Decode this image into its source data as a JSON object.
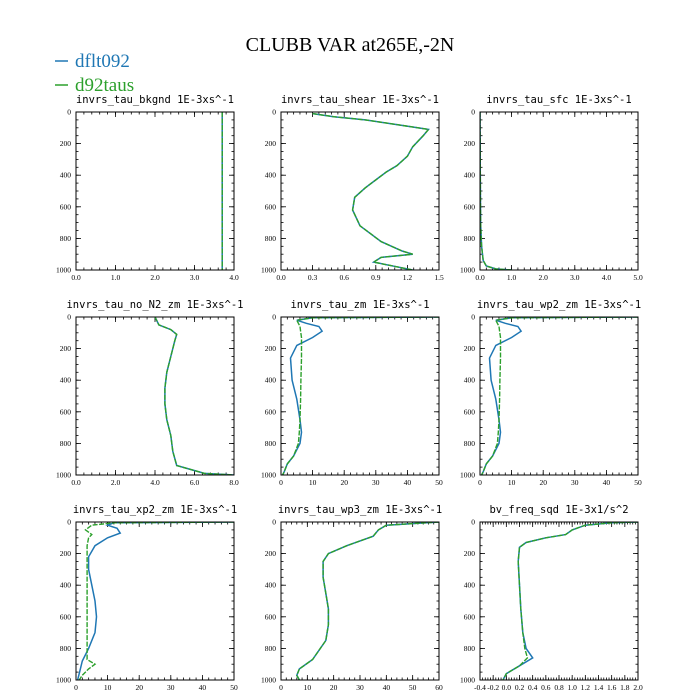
{
  "figure": {
    "title": "CLUBB VAR at265E,-2N",
    "legend": [
      {
        "label": "dflt092",
        "color": "#1f77b4"
      },
      {
        "label": "d92taus",
        "color": "#2ca02c"
      }
    ]
  },
  "chart_data": [
    {
      "type": "line",
      "title": "invrs_tau_bkgnd   1E-3xs^-1",
      "xlim": [
        0,
        4.0
      ],
      "ylim": [
        0,
        1000
      ],
      "y_inverted": true,
      "xticklabels": [
        "0.0",
        "1.0",
        "2.0",
        "3.0",
        "4.0"
      ],
      "yticklabels": [
        "0",
        "200",
        "400",
        "600",
        "800",
        "1000"
      ],
      "series": [
        {
          "name": "dflt092",
          "x": [
            3.7,
            3.7
          ],
          "y": [
            0,
            1000
          ]
        },
        {
          "name": "d92taus",
          "x": [
            3.7,
            3.7
          ],
          "y": [
            0,
            1000
          ]
        }
      ]
    },
    {
      "type": "line",
      "title": "invrs_tau_shear   1E-3xs^-1",
      "xlim": [
        0,
        1.5
      ],
      "ylim": [
        0,
        1000
      ],
      "y_inverted": true,
      "xticklabels": [
        "0.0",
        "0.3",
        "0.6",
        "0.9",
        "1.2",
        "1.5"
      ],
      "yticklabels": [
        "0",
        "200",
        "400",
        "600",
        "800",
        "1000"
      ],
      "series": [
        {
          "name": "dflt092",
          "x": [
            0.3,
            0.5,
            0.8,
            1.1,
            1.4,
            1.35,
            1.25,
            1.2,
            1.1,
            1.0,
            0.9,
            0.8,
            0.7,
            0.68,
            0.75,
            0.95,
            1.15,
            1.25,
            0.95,
            0.88,
            1.1,
            1.25
          ],
          "y": [
            10,
            30,
            50,
            80,
            110,
            150,
            220,
            280,
            340,
            380,
            430,
            480,
            540,
            620,
            720,
            820,
            880,
            900,
            920,
            950,
            980,
            1000
          ]
        },
        {
          "name": "d92taus",
          "x": [
            0.3,
            0.5,
            0.8,
            1.1,
            1.4,
            1.35,
            1.25,
            1.2,
            1.1,
            1.0,
            0.9,
            0.8,
            0.7,
            0.68,
            0.75,
            0.95,
            1.15,
            1.25,
            0.95,
            0.88,
            1.1,
            1.25
          ],
          "y": [
            10,
            30,
            50,
            80,
            110,
            150,
            220,
            280,
            340,
            380,
            430,
            480,
            540,
            620,
            720,
            820,
            880,
            900,
            920,
            950,
            980,
            1000
          ]
        }
      ]
    },
    {
      "type": "line",
      "title": "invrs_tau_sfc   1E-3xs^-1",
      "xlim": [
        0,
        5.0
      ],
      "ylim": [
        0,
        1000
      ],
      "y_inverted": true,
      "xticklabels": [
        "0.0",
        "1.0",
        "2.0",
        "3.0",
        "4.0",
        "5.0"
      ],
      "yticklabels": [
        "0",
        "200",
        "400",
        "600",
        "800",
        "1000"
      ],
      "series": [
        {
          "name": "dflt092",
          "x": [
            0.0,
            0.01,
            0.02,
            0.05,
            0.1,
            0.2,
            0.5,
            1.0
          ],
          "y": [
            0,
            400,
            700,
            850,
            940,
            975,
            993,
            1000
          ]
        },
        {
          "name": "d92taus",
          "x": [
            0.0,
            0.01,
            0.02,
            0.05,
            0.1,
            0.2,
            0.5,
            1.0
          ],
          "y": [
            0,
            400,
            700,
            850,
            940,
            975,
            993,
            1000
          ]
        }
      ]
    },
    {
      "type": "line",
      "title": "invrs_tau_no_N2_zm   1E-3xs^-1",
      "xlim": [
        0,
        8.0
      ],
      "ylim": [
        0,
        1000
      ],
      "y_inverted": true,
      "xticklabels": [
        "0.0",
        "2.0",
        "4.0",
        "6.0",
        "8.0"
      ],
      "yticklabels": [
        "0",
        "200",
        "400",
        "600",
        "800",
        "1000"
      ],
      "series": [
        {
          "name": "dflt092",
          "x": [
            4.0,
            4.2,
            4.8,
            5.1,
            5.0,
            4.8,
            4.6,
            4.5,
            4.5,
            4.6,
            4.8,
            4.9,
            5.1,
            6.5,
            8.0
          ],
          "y": [
            0,
            50,
            80,
            110,
            150,
            250,
            350,
            450,
            550,
            650,
            750,
            850,
            940,
            990,
            1000
          ]
        },
        {
          "name": "d92taus",
          "x": [
            4.0,
            4.2,
            4.8,
            5.1,
            5.0,
            4.8,
            4.6,
            4.5,
            4.5,
            4.6,
            4.8,
            4.9,
            5.1,
            6.5,
            8.0
          ],
          "y": [
            0,
            50,
            80,
            110,
            150,
            250,
            350,
            450,
            550,
            650,
            750,
            850,
            940,
            990,
            1000
          ]
        }
      ]
    },
    {
      "type": "line",
      "title": "invrs_tau_zm   1E-3xs^-1",
      "xlim": [
        0,
        50
      ],
      "ylim": [
        0,
        1000
      ],
      "y_inverted": true,
      "xticklabels": [
        "0",
        "10",
        "20",
        "30",
        "40",
        "50"
      ],
      "yticklabels": [
        "0",
        "200",
        "400",
        "600",
        "800",
        "1000"
      ],
      "series": [
        {
          "name": "dflt092",
          "x": [
            50,
            10,
            5,
            8,
            12,
            13,
            10,
            5,
            3,
            3.5,
            5,
            6,
            6.5,
            6,
            4,
            2,
            1,
            0.5
          ],
          "y": [
            0,
            5,
            20,
            40,
            60,
            90,
            130,
            180,
            260,
            400,
            520,
            650,
            730,
            800,
            880,
            930,
            980,
            1000
          ]
        },
        {
          "name": "d92taus",
          "x": [
            50,
            10,
            5,
            5.5,
            6,
            6.2,
            6.5,
            6.5,
            6.5,
            6.3,
            6.2,
            6,
            5.8,
            5.5,
            4,
            2,
            1,
            0.5
          ],
          "y": [
            0,
            5,
            20,
            40,
            60,
            90,
            130,
            180,
            260,
            400,
            520,
            650,
            730,
            800,
            880,
            930,
            980,
            1000
          ]
        }
      ]
    },
    {
      "type": "line",
      "title": "invrs_tau_wp2_zm   1E-3xs^-1",
      "xlim": [
        0,
        50
      ],
      "ylim": [
        0,
        1000
      ],
      "y_inverted": true,
      "xticklabels": [
        "0",
        "10",
        "20",
        "30",
        "40",
        "50"
      ],
      "yticklabels": [
        "0",
        "200",
        "400",
        "600",
        "800",
        "1000"
      ],
      "series": [
        {
          "name": "dflt092",
          "x": [
            50,
            10,
            5,
            8,
            12,
            13,
            10,
            5,
            3,
            3.5,
            5,
            6,
            6.5,
            6,
            4,
            2,
            1,
            0.5
          ],
          "y": [
            0,
            5,
            20,
            40,
            60,
            90,
            130,
            180,
            260,
            400,
            520,
            650,
            730,
            800,
            880,
            930,
            980,
            1000
          ]
        },
        {
          "name": "d92taus",
          "x": [
            50,
            10,
            5,
            5.5,
            6,
            6.2,
            6.5,
            6.5,
            6.5,
            6.3,
            6.2,
            6,
            5.8,
            5.5,
            4,
            2,
            1,
            0.5
          ],
          "y": [
            0,
            5,
            20,
            40,
            60,
            90,
            130,
            180,
            260,
            400,
            520,
            650,
            730,
            800,
            880,
            930,
            980,
            1000
          ]
        }
      ]
    },
    {
      "type": "line",
      "title": "invrs_tau_xp2_zm   1E-3xs^-1",
      "xlim": [
        0,
        50
      ],
      "ylim": [
        0,
        1000
      ],
      "y_inverted": true,
      "xticklabels": [
        "0",
        "10",
        "20",
        "30",
        "40",
        "50"
      ],
      "yticklabels": [
        "0",
        "200",
        "400",
        "600",
        "800",
        "1000"
      ],
      "series": [
        {
          "name": "dflt092",
          "x": [
            50,
            12,
            10,
            13,
            14,
            10,
            6,
            4,
            4,
            5,
            6,
            6.5,
            6,
            4,
            2,
            1,
            0.5
          ],
          "y": [
            0,
            5,
            20,
            40,
            70,
            100,
            150,
            220,
            300,
            400,
            500,
            600,
            700,
            800,
            880,
            960,
            1000
          ]
        },
        {
          "name": "d92taus",
          "x": [
            50,
            12,
            5,
            3,
            5,
            4,
            3.5,
            3.5,
            3.5,
            3.5,
            3.5,
            3.5,
            3.5,
            6,
            4,
            2,
            1
          ],
          "y": [
            0,
            5,
            20,
            50,
            80,
            100,
            150,
            250,
            400,
            550,
            700,
            800,
            870,
            900,
            930,
            970,
            1000
          ]
        }
      ]
    },
    {
      "type": "line",
      "title": "invrs_tau_wp3_zm   1E-3xs^-1",
      "xlim": [
        0,
        60
      ],
      "ylim": [
        0,
        1000
      ],
      "y_inverted": true,
      "xticklabels": [
        "0",
        "10",
        "20",
        "30",
        "40",
        "50",
        "60"
      ],
      "yticklabels": [
        "0",
        "200",
        "400",
        "600",
        "800",
        "1000"
      ],
      "series": [
        {
          "name": "dflt092",
          "x": [
            60,
            40,
            37,
            35,
            25,
            18,
            16,
            16,
            17,
            18,
            18,
            17,
            12,
            7,
            6,
            7
          ],
          "y": [
            0,
            20,
            50,
            90,
            150,
            200,
            250,
            350,
            450,
            550,
            650,
            750,
            870,
            930,
            970,
            1000
          ]
        },
        {
          "name": "d92taus",
          "x": [
            60,
            40,
            37,
            35,
            25,
            18,
            16,
            16,
            17,
            18,
            18,
            17,
            12,
            7,
            6,
            7
          ],
          "y": [
            0,
            20,
            50,
            90,
            150,
            200,
            250,
            350,
            450,
            550,
            650,
            750,
            870,
            930,
            970,
            1000
          ]
        }
      ]
    },
    {
      "type": "line",
      "title": "bv_freq_sqd   1E-3x1/s^2",
      "xlim": [
        -0.4,
        2.0
      ],
      "ylim": [
        0,
        1000
      ],
      "y_inverted": true,
      "xticklabels": [
        "-0.4",
        "-0.2",
        "0.0",
        "0.2",
        "0.4",
        "0.6",
        "0.8",
        "1.0",
        "1.2",
        "1.4",
        "1.6",
        "1.8",
        "2.0"
      ],
      "yticklabels": [
        "0",
        "200",
        "400",
        "600",
        "800",
        "1000"
      ],
      "series": [
        {
          "name": "dflt092",
          "x": [
            2.0,
            1.6,
            1.2,
            1.0,
            0.9,
            0.6,
            0.3,
            0.2,
            0.18,
            0.2,
            0.22,
            0.25,
            0.3,
            0.4,
            0.2,
            0.0,
            -0.05
          ],
          "y": [
            0,
            5,
            20,
            50,
            80,
            100,
            130,
            160,
            250,
            400,
            550,
            700,
            800,
            860,
            910,
            960,
            1000
          ]
        },
        {
          "name": "d92taus",
          "x": [
            2.0,
            1.6,
            1.2,
            1.0,
            0.9,
            0.6,
            0.3,
            0.2,
            0.18,
            0.2,
            0.22,
            0.25,
            0.28,
            0.32,
            0.2,
            0.0,
            -0.05
          ],
          "y": [
            0,
            5,
            20,
            50,
            80,
            100,
            130,
            160,
            250,
            400,
            550,
            700,
            800,
            860,
            910,
            960,
            1000
          ]
        }
      ]
    }
  ]
}
